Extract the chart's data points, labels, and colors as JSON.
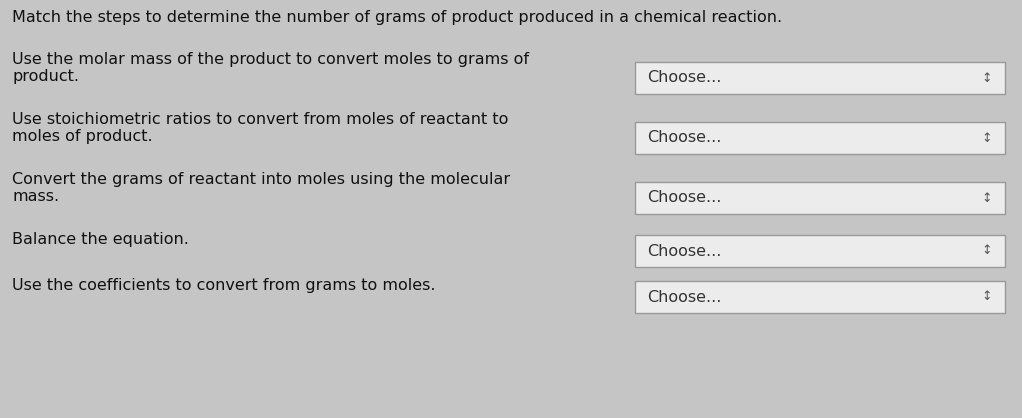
{
  "title": "Match the steps to determine the number of grams of product produced in a chemical reaction.",
  "bg_color": "#c5c5c5",
  "title_fontsize": 11.5,
  "title_color": "#111111",
  "rows": [
    {
      "left_lines": [
        "Use the molar mass of the product to convert moles to grams of",
        "product."
      ],
      "dropdown_label": "Choose..."
    },
    {
      "left_lines": [
        "Use stoichiometric ratios to convert from moles of reactant to",
        "moles of product."
      ],
      "dropdown_label": "Choose..."
    },
    {
      "left_lines": [
        "Convert the grams of reactant into moles using the molecular",
        "mass."
      ],
      "dropdown_label": "Choose..."
    },
    {
      "left_lines": [
        "Balance the equation."
      ],
      "dropdown_label": "Choose..."
    },
    {
      "left_lines": [
        "Use the coefficients to convert from grams to moles."
      ],
      "dropdown_label": "Choose..."
    }
  ],
  "text_fontsize": 11.5,
  "dropdown_fontsize": 11.5,
  "text_color": "#111111",
  "dropdown_bg": "#ececec",
  "dropdown_border": "#999999",
  "dropdown_text_color": "#333333",
  "arrow_color": "#555555"
}
